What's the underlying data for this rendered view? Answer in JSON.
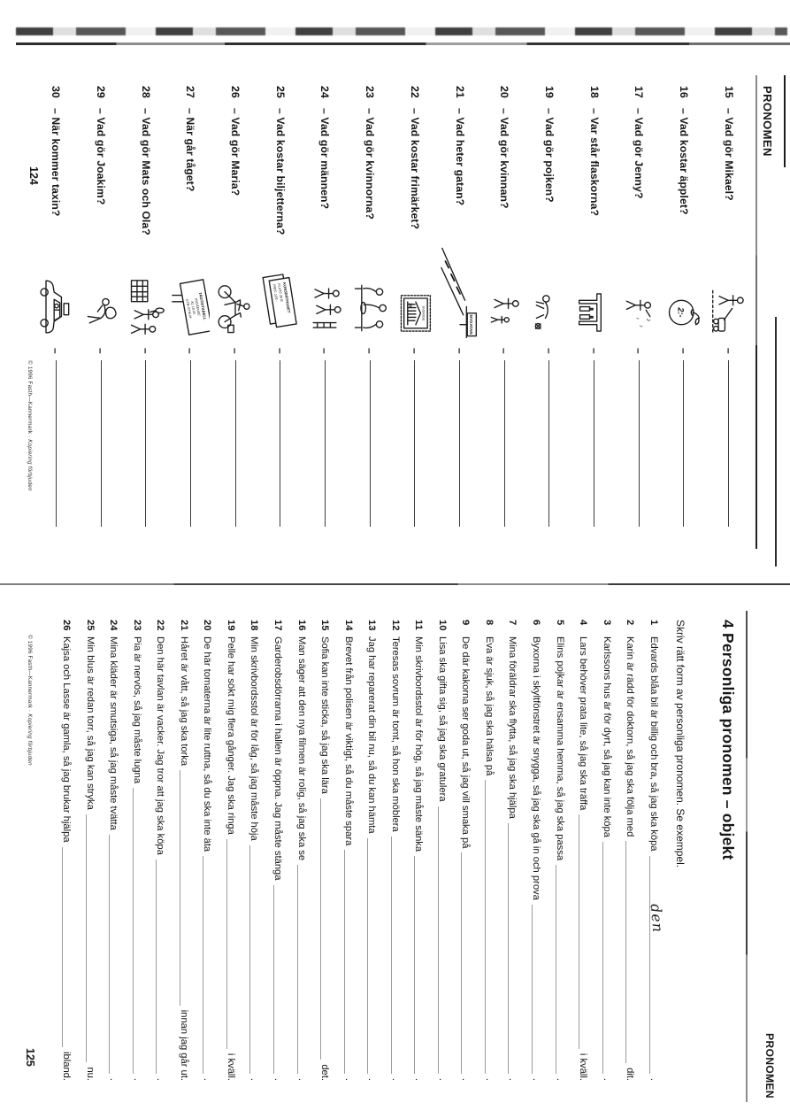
{
  "page_left": {
    "running_head": "PRONOMEN",
    "page_number": "124",
    "copyright": "© 1996 Fasth—Kannermark · ",
    "copyright_italic": "Kopiering förbjuden",
    "answer_dash": "–",
    "items": [
      {
        "num": "15",
        "q": "– Vad gör Mikael?",
        "ill": "mower",
        "ill_text": []
      },
      {
        "num": "16",
        "q": "– Vad kostar äpplet?",
        "ill": "apple",
        "ill_text": [
          "2:-"
        ]
      },
      {
        "num": "17",
        "q": "– Vad gör Jenny?",
        "ill": "singer",
        "ill_text": [
          "♪"
        ]
      },
      {
        "num": "18",
        "q": "– Var står flaskorna?",
        "ill": "table-bottles",
        "ill_text": []
      },
      {
        "num": "19",
        "q": "– Vad gör pojken?",
        "ill": "boy",
        "ill_text": []
      },
      {
        "num": "20",
        "q": "– Vad gör kvinnan?",
        "ill": "woman-child",
        "ill_text": []
      },
      {
        "num": "21",
        "q": "– Vad heter gatan?",
        "ill": "street-sign",
        "ill_text": [
          "NYGATAN"
        ]
      },
      {
        "num": "22",
        "q": "– Vad kostar frimärket?",
        "ill": "stamp",
        "ill_text": [
          "SVERIGE",
          "10"
        ]
      },
      {
        "num": "23",
        "q": "– Vad gör kvinnorna?",
        "ill": "women-group",
        "ill_text": []
      },
      {
        "num": "24",
        "q": "– Vad gör männen?",
        "ill": "men-group",
        "ill_text": []
      },
      {
        "num": "25",
        "q": "– Vad kostar biljetterna?",
        "ill": "tickets",
        "ill_text": [
          "KONSERTHUSET",
          "PLATS 39 B",
          "PRIS: 125:-"
        ]
      },
      {
        "num": "26",
        "q": "– Vad gör Maria?",
        "ill": "bicycle",
        "ill_text": []
      },
      {
        "num": "27",
        "q": "– När går tåget?",
        "ill": "timetable",
        "ill_text": [
          "TÅGTIDTABELL",
          "AVGÅENDE",
          "KL 18.00",
          "GTB–STHLM"
        ]
      },
      {
        "num": "28",
        "q": "– Vad gör Mats och Ola?",
        "ill": "two-boys",
        "ill_text": []
      },
      {
        "num": "29",
        "q": "– Vad gör Joakim?",
        "ill": "carrying",
        "ill_text": []
      },
      {
        "num": "30",
        "q": "– När kommer taxin?",
        "ill": "taxi",
        "ill_text": []
      }
    ]
  },
  "page_right": {
    "running_head": "PRONOMEN",
    "title": "4 Personliga pronomen – objekt",
    "instruction": "Skriv rätt form av personliga pronomen. Se exempel.",
    "page_number": "125",
    "copyright": "© 1996 Fasth—Kannermark · ",
    "copyright_italic": "Kopiering förbjuden",
    "items": [
      {
        "num": "1",
        "pre": "Edvards blåa bil är billig och bra, så jag ska köpa",
        "fill": "den",
        "post": "."
      },
      {
        "num": "2",
        "pre": "Karin är rädd för doktorn, så jag ska följa med",
        "post": "dit."
      },
      {
        "num": "3",
        "pre": "Karlssons hus är för dyrt, så jag kan inte köpa",
        "post": "."
      },
      {
        "num": "4",
        "pre": "Lars behöver prata lite, så jag ska träffa",
        "post": "i kväll."
      },
      {
        "num": "5",
        "pre": "Elins pojkar är ensamma hemma, så jag ska passa",
        "post": "."
      },
      {
        "num": "6",
        "pre": "Byxorna i skyltfönstret är snygga, så jag ska gå in och prova",
        "post": "."
      },
      {
        "num": "7",
        "pre": "Mina föräldrar ska flytta, så jag ska hjälpa",
        "post": "."
      },
      {
        "num": "8",
        "pre": "Eva är sjuk, så jag ska hälsa på",
        "post": "."
      },
      {
        "num": "9",
        "pre": "De där kakorna ser goda ut, så jag vill smaka på",
        "post": "."
      },
      {
        "num": "10",
        "pre": "Lisa ska gifta sig, så jag ska gratulera",
        "post": "."
      },
      {
        "num": "11",
        "pre": "Min skrivbordsstol är för hög, så jag måste sänka",
        "post": "."
      },
      {
        "num": "12",
        "pre": "Teresas sovrum är tomt, så hon ska möblera",
        "post": "."
      },
      {
        "num": "13",
        "pre": "Jag har reparerat din bil nu, så du kan hämta",
        "post": "."
      },
      {
        "num": "14",
        "pre": "Brevet från polisen är viktigt, så du måste spara",
        "post": "."
      },
      {
        "num": "15",
        "pre": "Sofia kan inte sticka, så jag ska lära",
        "post": "det."
      },
      {
        "num": "16",
        "pre": "Man säger att den nya filmen är rolig, så jag ska se",
        "post": "."
      },
      {
        "num": "17",
        "pre": "Garderobsdörrarna i hallen är öppna. Jag måste stänga",
        "post": "."
      },
      {
        "num": "18",
        "pre": "Min skrivbordsstol är för låg, så jag måste höja",
        "post": "."
      },
      {
        "num": "19",
        "pre": "Pelle har sökt mig flera gånger. Jag ska ringa",
        "post": "i kväll."
      },
      {
        "num": "20",
        "pre": "De här tomaterna är lite ruttna, så du ska inte äta",
        "post": "."
      },
      {
        "num": "21",
        "pre": "Håret är vått, så jag ska torka",
        "post": "innan jag går ut."
      },
      {
        "num": "22",
        "pre": "Den här tavlan är vacker. Jag tror att jag ska köpa",
        "post": "."
      },
      {
        "num": "23",
        "pre": "Pia är nervös, så jag måste lugna",
        "post": "."
      },
      {
        "num": "24",
        "pre": "Mina kläder är smutsiga, så jag måste tvätta",
        "post": "."
      },
      {
        "num": "25",
        "pre": "Min blus är redan torr, så jag kan stryka",
        "post": "nu."
      },
      {
        "num": "26",
        "pre": "Kajsa och Lasse är gamla, så jag brukar hjälpa",
        "post": "ibland."
      }
    ]
  }
}
